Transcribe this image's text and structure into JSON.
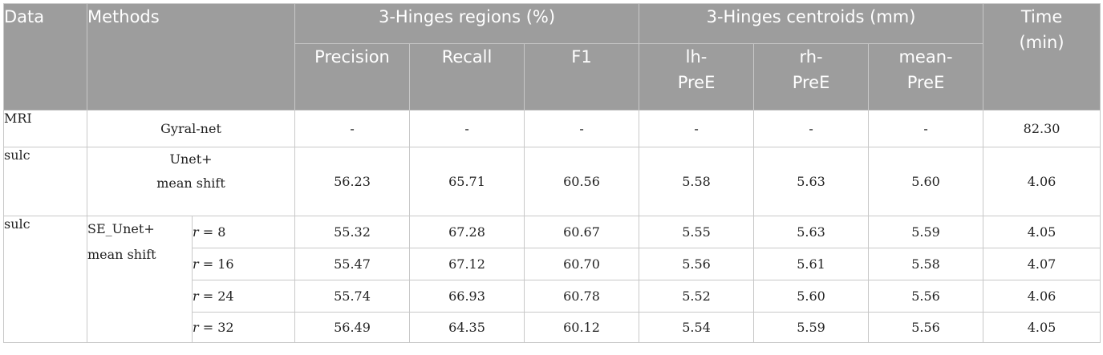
{
  "header": {
    "data": "Data",
    "methods": "Methods",
    "regions_group": "3-Hinges regions (%)",
    "centroids_group": "3-Hinges centroids (mm)",
    "time_line1": "Time",
    "time_line2": "(min)",
    "precision": "Precision",
    "recall": "Recall",
    "f1": "F1",
    "lh_line1": "lh-",
    "lh_line2": "PreE",
    "rh_line1": "rh-",
    "rh_line2": "PreE",
    "mean_line1": "mean-",
    "mean_line2": "PreE"
  },
  "rows": {
    "gyral": {
      "data": "MRI",
      "method": "Gyral-net",
      "precision": "-",
      "recall": "-",
      "f1": "-",
      "lh": "-",
      "rh": "-",
      "mean": "-",
      "time": "82.30"
    },
    "unet": {
      "data": "sulc",
      "method_line1": "Unet+",
      "method_line2": "mean shift",
      "precision": "56.23",
      "recall": "65.71",
      "f1": "60.56",
      "lh": "5.58",
      "rh": "5.63",
      "mean": "5.60",
      "time": "4.06"
    },
    "se_unet": {
      "data": "sulc",
      "method_line1": "SE_Unet+",
      "method_line2": "mean shift",
      "r_var": "r",
      "variants": [
        {
          "r": "= 8",
          "precision": "55.32",
          "recall": "67.28",
          "f1": "60.67",
          "lh": "5.55",
          "rh": "5.63",
          "mean": "5.59",
          "time": "4.05"
        },
        {
          "r": "= 16",
          "precision": "55.47",
          "recall": "67.12",
          "f1": "60.70",
          "lh": "5.56",
          "rh": "5.61",
          "mean": "5.58",
          "time": "4.07"
        },
        {
          "r": "= 24",
          "precision": "55.74",
          "recall": "66.93",
          "f1": "60.78",
          "lh": "5.52",
          "rh": "5.60",
          "mean": "5.56",
          "time": "4.06"
        },
        {
          "r": "= 32",
          "precision": "56.49",
          "recall": "64.35",
          "f1": "60.12",
          "lh": "5.54",
          "rh": "5.59",
          "mean": "5.56",
          "time": "4.05"
        }
      ]
    }
  }
}
